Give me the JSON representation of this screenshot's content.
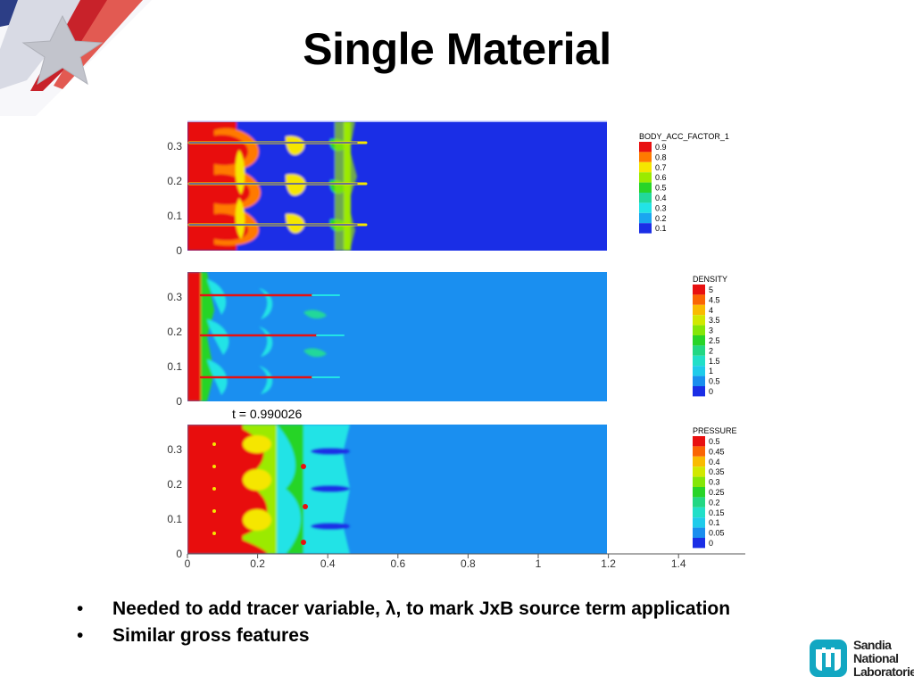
{
  "slide": {
    "title": "Single Material",
    "bullets": [
      {
        "text": "Needed to add tracer variable, λ, to mark JxB source term application"
      },
      {
        "text": "Similar gross features"
      }
    ],
    "logo_lines": [
      "Sandia",
      "National",
      "Laboratories"
    ]
  },
  "figure": {
    "time_label": "t = 0.990026",
    "y_ticks": [
      "0",
      "0.1",
      "0.2",
      "0.3"
    ],
    "x_ticks": [
      "0",
      "0.2",
      "0.4",
      "0.6",
      "0.8",
      "1",
      "1.2",
      "1.4"
    ],
    "panels": [
      {
        "variable": "BODY_ACC_FACTOR_1",
        "legend_levels": [
          "0.9",
          "0.8",
          "0.7",
          "0.6",
          "0.5",
          "0.4",
          "0.3",
          "0.2",
          "0.1"
        ]
      },
      {
        "variable": "DENSITY",
        "legend_levels": [
          "5",
          "4.5",
          "4",
          "3.5",
          "3",
          "2.5",
          "2",
          "1.5",
          "1",
          "0.5",
          "0"
        ]
      },
      {
        "variable": "PRESSURE",
        "legend_levels": [
          "0.5",
          "0.45",
          "0.4",
          "0.35",
          "0.3",
          "0.25",
          "0.2",
          "0.15",
          "0.1",
          "0.05",
          "0"
        ]
      }
    ]
  },
  "colors": {
    "background_blue": "#1a2ee6",
    "contour_scale": [
      "#e81010",
      "#ff7a00",
      "#f5e600",
      "#9bea00",
      "#28d428",
      "#22d89a",
      "#22e3e6",
      "#1aa6f0",
      "#1a2ee6"
    ]
  },
  "icons": {
    "logo": "sandia-thunderbird-icon",
    "corner": "flag-star-icon"
  }
}
